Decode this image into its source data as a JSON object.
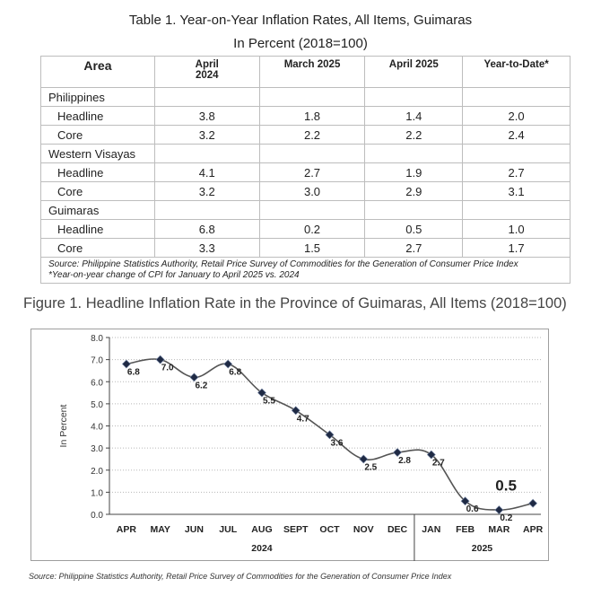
{
  "table": {
    "title": "Table 1. Year-on-Year Inflation Rates, All Items, Guimaras",
    "subtitle": "In Percent (2018=100)",
    "headers": [
      "Area",
      "April\n2024",
      "March 2025",
      "April 2025",
      "Year-to-Date*"
    ],
    "rows": [
      {
        "label": "Philippines",
        "values": [
          "",
          "",
          "",
          ""
        ],
        "group": true
      },
      {
        "label": "Headline",
        "values": [
          "3.8",
          "1.8",
          "1.4",
          "2.0"
        ],
        "group": false
      },
      {
        "label": "Core",
        "values": [
          "3.2",
          "2.2",
          "2.2",
          "2.4"
        ],
        "group": false
      },
      {
        "label": "Western Visayas",
        "values": [
          "",
          "",
          "",
          ""
        ],
        "group": true
      },
      {
        "label": "Headline",
        "values": [
          "4.1",
          "2.7",
          "1.9",
          "2.7"
        ],
        "group": false
      },
      {
        "label": "Core",
        "values": [
          "3.2",
          "3.0",
          "2.9",
          "3.1"
        ],
        "group": false
      },
      {
        "label": "Guimaras",
        "values": [
          "",
          "",
          "",
          ""
        ],
        "group": true
      },
      {
        "label": "Headline",
        "values": [
          "6.8",
          "0.2",
          "0.5",
          "1.0"
        ],
        "group": false
      },
      {
        "label": "Core",
        "values": [
          "3.3",
          "1.5",
          "2.7",
          "1.7"
        ],
        "group": false
      }
    ],
    "source_line1": "Source: Philippine Statistics Authority, Retail Price Survey of Commodities for the Generation of Consumer Price Index",
    "source_line2": "*Year-on-year change of CPI for January to April 2025 vs. 2024"
  },
  "figure": {
    "title": "Figure 1. Headline Inflation Rate in the Province of Guimaras, All Items (2018=100)"
  },
  "chart_data": {
    "type": "line",
    "categories": [
      "APR",
      "MAY",
      "JUN",
      "JUL",
      "AUG",
      "SEPT",
      "OCT",
      "NOV",
      "DEC",
      "JAN",
      "FEB",
      "MAR",
      "APR"
    ],
    "year_groups": [
      {
        "label": "2024",
        "count": 9
      },
      {
        "label": "2025",
        "count": 4
      }
    ],
    "series": [
      {
        "values": [
          6.8,
          7.0,
          6.2,
          6.8,
          5.5,
          4.7,
          3.6,
          2.5,
          2.8,
          2.7,
          0.6,
          0.2,
          0.5
        ]
      }
    ],
    "data_labels": [
      "6.8",
      "7.0",
      "6.2",
      "6.8",
      "5.5",
      "4.7",
      "3.6",
      "2.5",
      "2.8",
      "2.7",
      "0.6",
      "0.2",
      "0.5"
    ],
    "highlight_last": true,
    "ylabel": "In Percent",
    "ylim": [
      0,
      8
    ],
    "yticks": [
      "0.0",
      "1.0",
      "2.0",
      "3.0",
      "4.0",
      "5.0",
      "6.0",
      "7.0",
      "8.0"
    ],
    "grid": "horizontal dotted",
    "line_color": "#555555",
    "marker_color": "#1f2a44"
  },
  "footer_source": "Source: Philippine Statistics Authority, Retail Price Survey of Commodities for the Generation of Consumer Price Index"
}
